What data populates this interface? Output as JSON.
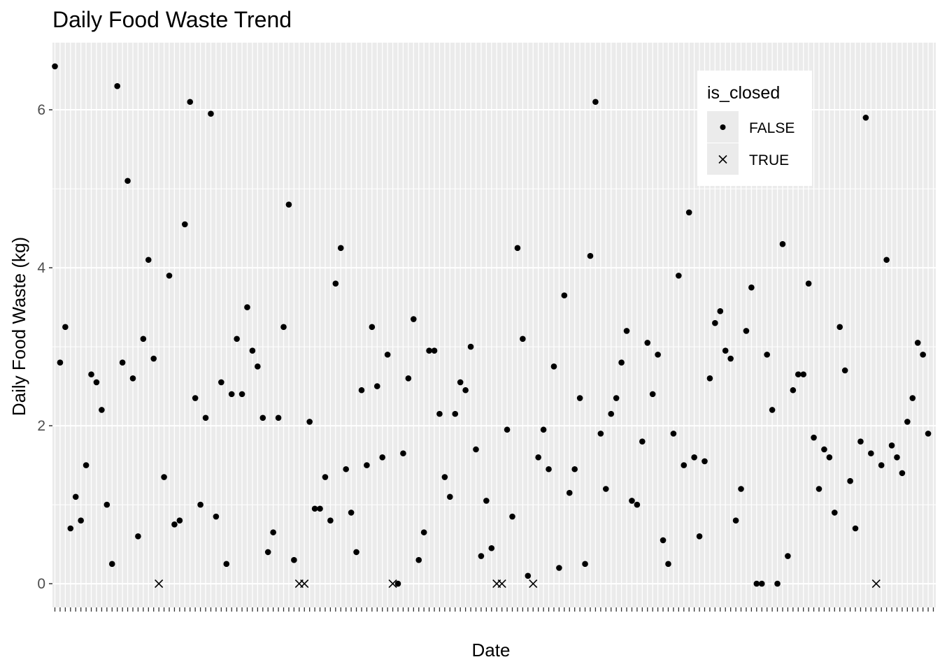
{
  "chart_data": {
    "type": "scatter",
    "title": "Daily Food Waste Trend",
    "xlabel": "Date",
    "ylabel": "Daily Food Waste (kg)",
    "y_ticks": [
      0,
      2,
      4,
      6
    ],
    "ylim": [
      -0.3,
      6.85
    ],
    "n_dates": 170,
    "x_tick_labels_note": "",
    "grid": true,
    "background": "#ebebeb",
    "legend": {
      "title": "is_closed",
      "placement": "top-right",
      "entries": [
        {
          "label": "FALSE",
          "shape": "dot"
        },
        {
          "label": "TRUE",
          "shape": "cross"
        }
      ]
    },
    "series": [
      {
        "name": "FALSE",
        "shape": "dot",
        "points": [
          [
            0,
            6.55
          ],
          [
            1,
            2.8
          ],
          [
            2,
            3.25
          ],
          [
            3,
            0.7
          ],
          [
            4,
            1.1
          ],
          [
            5,
            0.8
          ],
          [
            6,
            1.5
          ],
          [
            7,
            2.65
          ],
          [
            8,
            2.55
          ],
          [
            9,
            2.2
          ],
          [
            10,
            1.0
          ],
          [
            11,
            0.25
          ],
          [
            12,
            6.3
          ],
          [
            13,
            2.8
          ],
          [
            14,
            5.1
          ],
          [
            15,
            2.6
          ],
          [
            16,
            0.6
          ],
          [
            17,
            3.1
          ],
          [
            18,
            4.1
          ],
          [
            19,
            2.85
          ],
          [
            21,
            1.35
          ],
          [
            22,
            3.9
          ],
          [
            23,
            0.75
          ],
          [
            24,
            0.8
          ],
          [
            25,
            4.55
          ],
          [
            26,
            6.1
          ],
          [
            27,
            2.35
          ],
          [
            28,
            1.0
          ],
          [
            29,
            2.1
          ],
          [
            30,
            5.95
          ],
          [
            31,
            0.85
          ],
          [
            32,
            2.55
          ],
          [
            33,
            0.25
          ],
          [
            34,
            2.4
          ],
          [
            35,
            3.1
          ],
          [
            36,
            2.4
          ],
          [
            37,
            3.5
          ],
          [
            38,
            2.95
          ],
          [
            39,
            2.75
          ],
          [
            40,
            2.1
          ],
          [
            41,
            0.4
          ],
          [
            42,
            0.65
          ],
          [
            43,
            2.1
          ],
          [
            44,
            3.25
          ],
          [
            45,
            4.8
          ],
          [
            46,
            0.3
          ],
          [
            49,
            2.05
          ],
          [
            50,
            0.95
          ],
          [
            51,
            0.95
          ],
          [
            52,
            1.35
          ],
          [
            53,
            0.8
          ],
          [
            54,
            3.8
          ],
          [
            55,
            4.25
          ],
          [
            56,
            1.45
          ],
          [
            57,
            0.9
          ],
          [
            58,
            0.4
          ],
          [
            59,
            2.45
          ],
          [
            60,
            1.5
          ],
          [
            61,
            3.25
          ],
          [
            62,
            2.5
          ],
          [
            63,
            1.6
          ],
          [
            64,
            2.9
          ],
          [
            66,
            0.0
          ],
          [
            67,
            1.65
          ],
          [
            68,
            2.6
          ],
          [
            69,
            3.35
          ],
          [
            70,
            0.3
          ],
          [
            71,
            0.65
          ],
          [
            72,
            2.95
          ],
          [
            73,
            2.95
          ],
          [
            74,
            2.15
          ],
          [
            75,
            1.35
          ],
          [
            76,
            1.1
          ],
          [
            77,
            2.15
          ],
          [
            78,
            2.55
          ],
          [
            79,
            2.45
          ],
          [
            80,
            3.0
          ],
          [
            81,
            1.7
          ],
          [
            82,
            0.35
          ],
          [
            83,
            1.05
          ],
          [
            84,
            0.45
          ],
          [
            87,
            1.95
          ],
          [
            88,
            0.85
          ],
          [
            89,
            4.25
          ],
          [
            90,
            3.1
          ],
          [
            91,
            0.1
          ],
          [
            93,
            1.6
          ],
          [
            94,
            1.95
          ],
          [
            95,
            1.45
          ],
          [
            96,
            2.75
          ],
          [
            97,
            0.2
          ],
          [
            98,
            3.65
          ],
          [
            99,
            1.15
          ],
          [
            100,
            1.45
          ],
          [
            101,
            2.35
          ],
          [
            102,
            0.25
          ],
          [
            103,
            4.15
          ],
          [
            104,
            6.1
          ],
          [
            105,
            1.9
          ],
          [
            106,
            1.2
          ],
          [
            107,
            2.15
          ],
          [
            108,
            2.35
          ],
          [
            109,
            2.8
          ],
          [
            110,
            3.2
          ],
          [
            111,
            1.05
          ],
          [
            112,
            1.0
          ],
          [
            113,
            1.8
          ],
          [
            114,
            3.05
          ],
          [
            115,
            2.4
          ],
          [
            116,
            2.9
          ],
          [
            117,
            0.55
          ],
          [
            118,
            0.25
          ],
          [
            119,
            1.9
          ],
          [
            120,
            3.9
          ],
          [
            121,
            1.5
          ],
          [
            122,
            4.7
          ],
          [
            123,
            1.6
          ],
          [
            124,
            0.6
          ],
          [
            125,
            1.55
          ],
          [
            126,
            2.6
          ],
          [
            127,
            3.3
          ],
          [
            128,
            3.45
          ],
          [
            129,
            2.95
          ],
          [
            130,
            2.85
          ],
          [
            131,
            0.8
          ],
          [
            132,
            1.2
          ],
          [
            133,
            3.2
          ],
          [
            134,
            3.75
          ],
          [
            135,
            0.0
          ],
          [
            136,
            0.0
          ],
          [
            137,
            2.9
          ],
          [
            138,
            2.2
          ],
          [
            139,
            0.0
          ],
          [
            140,
            4.3
          ],
          [
            141,
            0.35
          ],
          [
            142,
            2.45
          ],
          [
            143,
            2.65
          ],
          [
            144,
            2.65
          ],
          [
            145,
            3.8
          ],
          [
            146,
            1.85
          ],
          [
            147,
            1.2
          ],
          [
            148,
            1.7
          ],
          [
            149,
            1.6
          ],
          [
            150,
            0.9
          ],
          [
            151,
            3.25
          ],
          [
            152,
            2.7
          ],
          [
            153,
            1.3
          ],
          [
            154,
            0.7
          ],
          [
            155,
            1.8
          ],
          [
            156,
            5.9
          ],
          [
            157,
            1.65
          ],
          [
            159,
            1.5
          ],
          [
            160,
            4.1
          ],
          [
            161,
            1.75
          ],
          [
            162,
            1.6
          ],
          [
            163,
            1.4
          ],
          [
            164,
            2.05
          ],
          [
            165,
            2.35
          ],
          [
            166,
            3.05
          ],
          [
            167,
            2.9
          ],
          [
            168,
            1.9
          ]
        ]
      },
      {
        "name": "TRUE",
        "shape": "cross",
        "points": [
          [
            20,
            0
          ],
          [
            47,
            0
          ],
          [
            48,
            0
          ],
          [
            65,
            0
          ],
          [
            85,
            0
          ],
          [
            86,
            0
          ],
          [
            92,
            0
          ],
          [
            158,
            0
          ]
        ]
      }
    ]
  }
}
